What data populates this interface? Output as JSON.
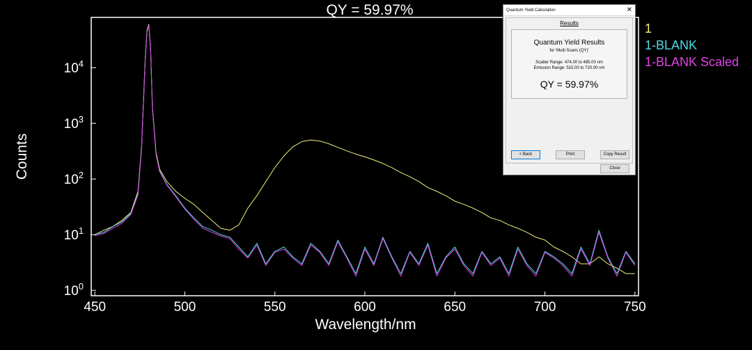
{
  "chart_data": {
    "type": "line",
    "title": "QY = 59.97%",
    "xlabel": "Wavelength/nm",
    "ylabel": "Counts",
    "xlim": [
      448,
      752
    ],
    "ylim": [
      0.8,
      80000
    ],
    "yscale": "log",
    "x_ticks": [
      450,
      500,
      550,
      600,
      650,
      700,
      750
    ],
    "y_ticks": [
      {
        "value": 1,
        "exp": "0"
      },
      {
        "value": 10,
        "exp": "1"
      },
      {
        "value": 100,
        "exp": "2"
      },
      {
        "value": 1000,
        "exp": "3"
      },
      {
        "value": 10000,
        "exp": "4"
      }
    ],
    "y_tick_base": "10",
    "legend_position": "top-right",
    "grid": false,
    "series": [
      {
        "name": "1",
        "color": "#f2f27a",
        "x": [
          450,
          455,
          460,
          465,
          470,
          474,
          476,
          478,
          479,
          480,
          481,
          482,
          484,
          486,
          490,
          495,
          500,
          505,
          510,
          515,
          520,
          525,
          530,
          535,
          540,
          545,
          550,
          555,
          560,
          565,
          570,
          575,
          580,
          585,
          590,
          595,
          600,
          605,
          610,
          615,
          620,
          625,
          630,
          635,
          640,
          645,
          650,
          655,
          660,
          665,
          670,
          675,
          680,
          685,
          690,
          695,
          700,
          705,
          710,
          715,
          720,
          725,
          730,
          735,
          740,
          745,
          750
        ],
        "y": [
          10,
          12,
          14,
          18,
          25,
          60,
          400,
          15000,
          48000,
          60000,
          22000,
          2000,
          300,
          150,
          90,
          60,
          45,
          35,
          25,
          18,
          13,
          12,
          15,
          30,
          50,
          90,
          160,
          260,
          380,
          470,
          500,
          480,
          430,
          370,
          320,
          280,
          250,
          220,
          190,
          160,
          130,
          110,
          90,
          70,
          60,
          50,
          40,
          35,
          30,
          25,
          20,
          18,
          15,
          13,
          11,
          9,
          8,
          6,
          5,
          4,
          3,
          3,
          4,
          3,
          2.5,
          2,
          2
        ]
      },
      {
        "name": "1-BLANK",
        "color": "#4fd8e6",
        "x": [
          450,
          455,
          460,
          465,
          470,
          474,
          476,
          478,
          479,
          480,
          481,
          482,
          484,
          486,
          490,
          495,
          500,
          505,
          510,
          515,
          520,
          525,
          530,
          535,
          540,
          545,
          550,
          555,
          560,
          565,
          570,
          575,
          580,
          585,
          590,
          595,
          600,
          605,
          610,
          615,
          620,
          625,
          630,
          635,
          640,
          645,
          650,
          655,
          660,
          665,
          670,
          675,
          680,
          685,
          690,
          695,
          700,
          705,
          710,
          715,
          720,
          725,
          730,
          735,
          740,
          745,
          750
        ],
        "y": [
          10,
          11,
          14,
          17,
          24,
          55,
          380,
          14000,
          46000,
          58000,
          21000,
          1900,
          280,
          140,
          80,
          50,
          30,
          20,
          14,
          12,
          10,
          9,
          6,
          4,
          7,
          3,
          5,
          6,
          4,
          3,
          7,
          5,
          3,
          8,
          4,
          2,
          6,
          3,
          9,
          4,
          2,
          5,
          3,
          7,
          2,
          4,
          6,
          3,
          2,
          5,
          3,
          4,
          2,
          6,
          3,
          2,
          5,
          4,
          3,
          2,
          6,
          3,
          12,
          4,
          2,
          5,
          3
        ]
      },
      {
        "name": "1-BLANK Scaled",
        "color": "#e044e6",
        "x": [
          450,
          455,
          460,
          465,
          470,
          474,
          476,
          478,
          479,
          480,
          481,
          482,
          484,
          486,
          490,
          495,
          500,
          505,
          510,
          515,
          520,
          525,
          530,
          535,
          540,
          545,
          550,
          555,
          560,
          565,
          570,
          575,
          580,
          585,
          590,
          595,
          600,
          605,
          610,
          615,
          620,
          625,
          630,
          635,
          640,
          645,
          650,
          655,
          660,
          665,
          670,
          675,
          680,
          685,
          690,
          695,
          700,
          705,
          710,
          715,
          720,
          725,
          730,
          735,
          740,
          745,
          750
        ],
        "y": [
          9.5,
          10.5,
          13,
          16,
          23,
          52,
          360,
          13500,
          45000,
          57000,
          20500,
          1850,
          270,
          135,
          78,
          48,
          29,
          19,
          13,
          11,
          9.5,
          8.5,
          5.5,
          3.8,
          6.5,
          2.8,
          4.8,
          5.5,
          3.8,
          2.8,
          6.5,
          4.8,
          2.8,
          7.5,
          3.8,
          1.8,
          5.5,
          2.8,
          8.5,
          3.8,
          1.8,
          4.8,
          2.8,
          6.5,
          1.8,
          3.8,
          5.5,
          2.8,
          1.8,
          4.8,
          2.8,
          3.8,
          1.8,
          5.5,
          2.8,
          1.8,
          4.8,
          3.8,
          2.8,
          1.8,
          5.5,
          2.8,
          11,
          3.8,
          1.8,
          4.8,
          2.8
        ]
      }
    ]
  },
  "dialog": {
    "title": "Quantum Yield Calculation",
    "close_glyph": "✕",
    "section_title": "Results",
    "heading": "Quantum Yield Results",
    "subheading": "for 'Multi Scans (QY)'",
    "scatter_range": "Scatter Range: 474.00 to 485.00 nm",
    "emission_range": "Emission Range: 515.00 to 720.00 nm",
    "qy": "QY = 59.97%",
    "back_label": "< Back",
    "print_label": "Print",
    "copy_label": "Copy Result",
    "close_label": "Close"
  }
}
